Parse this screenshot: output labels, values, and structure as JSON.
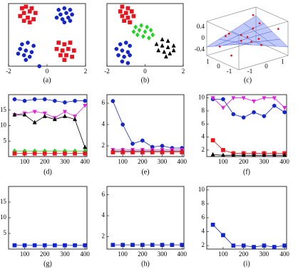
{
  "chart_data": [
    {
      "type": "scatter",
      "caption": "(a)",
      "xlim": [
        -2,
        2
      ],
      "ylim": [
        -2,
        2
      ],
      "xticks": [
        -2,
        0,
        2
      ],
      "series": [
        {
          "color": "#e8141e",
          "marker": "s",
          "x": [
            -1.3,
            -1.1,
            -0.8,
            -1.2,
            -0.9,
            -0.6,
            -1.4,
            -1.0,
            -0.7,
            -1.2,
            -0.9,
            0.6,
            0.9,
            1.2,
            0.5,
            0.8,
            1.1,
            1.4,
            0.7,
            1.0,
            1.3,
            0.9
          ],
          "y": [
            1.7,
            1.8,
            1.7,
            1.4,
            1.5,
            1.4,
            1.2,
            1.1,
            1.0,
            0.9,
            0.8,
            -0.5,
            -0.6,
            -0.5,
            -0.9,
            -1.0,
            -0.9,
            -1.0,
            -1.3,
            -1.3,
            -1.4,
            -1.6
          ]
        },
        {
          "color": "#1426c8",
          "marker": "o",
          "x": [
            0.6,
            0.9,
            1.2,
            0.7,
            1.0,
            1.3,
            0.5,
            0.8,
            1.1,
            0.9,
            1.2,
            -1.3,
            -1.0,
            -0.7,
            -1.4,
            -1.1,
            -0.8,
            -1.5,
            -1.2,
            -0.9,
            -1.1,
            -0.4
          ],
          "y": [
            1.6,
            1.7,
            1.6,
            1.3,
            1.4,
            1.3,
            1.1,
            1.0,
            1.1,
            0.8,
            0.9,
            -0.6,
            -0.5,
            -0.7,
            -0.9,
            -1.0,
            -1.1,
            -1.2,
            -1.3,
            -1.4,
            -1.6,
            -2.0
          ]
        }
      ]
    },
    {
      "type": "scatter",
      "caption": "(b)",
      "xlim": [
        -2,
        2
      ],
      "ylim": [
        -2,
        2
      ],
      "xticks": [
        -2,
        0,
        2
      ],
      "series": [
        {
          "color": "#e8141e",
          "marker": "s",
          "x": [
            -1.2,
            -0.9,
            -1.3,
            -1.0,
            -0.7,
            -1.2,
            -0.9,
            -0.6,
            -1.1,
            -0.8
          ],
          "y": [
            1.8,
            1.7,
            1.5,
            1.4,
            1.5,
            1.2,
            1.1,
            1.2,
            0.9,
            0.8
          ]
        },
        {
          "color": "#22d422",
          "marker": "d",
          "x": [
            -0.5,
            -0.2,
            0.1,
            -0.6,
            -0.3,
            0.0,
            0.3,
            -0.4,
            -0.1,
            0.2,
            0.4
          ],
          "y": [
            0.5,
            0.6,
            0.5,
            0.2,
            0.3,
            0.2,
            0.3,
            0.0,
            -0.1,
            -0.2,
            0.0
          ]
        },
        {
          "color": "#1426c8",
          "marker": "o",
          "x": [
            -1.3,
            -1.0,
            -0.8,
            -1.5,
            -1.2,
            -0.9,
            -1.4,
            -1.1,
            -0.8,
            -1.2,
            -0.9
          ],
          "y": [
            -0.6,
            -0.5,
            -0.7,
            -0.9,
            -1.0,
            -1.1,
            -1.3,
            -1.4,
            -1.3,
            -1.7,
            -1.8
          ]
        },
        {
          "color": "#000000",
          "marker": "^",
          "x": [
            0.9,
            1.2,
            0.6,
            0.9,
            1.2,
            1.5,
            0.7,
            1.0,
            1.3,
            1.5,
            1.1
          ],
          "y": [
            -0.3,
            -0.4,
            -0.6,
            -0.7,
            -0.8,
            -0.7,
            -1.0,
            -1.1,
            -1.2,
            -1.0,
            -1.4
          ]
        }
      ]
    },
    {
      "type": "scatter3d",
      "caption": "(c)",
      "xlim": [
        -1.5,
        1.5
      ],
      "ylim": [
        -1.5,
        1.5
      ],
      "zlim": [
        -0.6,
        0.6
      ],
      "xticks": [
        -1,
        0,
        1
      ],
      "yticks": [
        -1,
        0,
        1
      ],
      "zticks": [
        -0.4,
        0,
        0.4
      ],
      "surface": {
        "color": "#8c9cf0",
        "x": [
          -1.5,
          -0.75,
          0,
          0.75,
          1.5
        ],
        "y": [
          -1.5,
          -0.75,
          0,
          0.75,
          1.5
        ],
        "z": [
          [
            0.3,
            0.15,
            0,
            -0.15,
            -0.3
          ],
          [
            0.15,
            0.08,
            0,
            -0.08,
            -0.15
          ],
          [
            0,
            0,
            0,
            0,
            0
          ],
          [
            -0.15,
            -0.08,
            0,
            0.08,
            0.15
          ],
          [
            -0.3,
            -0.15,
            0,
            0.15,
            0.3
          ]
        ]
      },
      "points": {
        "color": "#e8141e",
        "x": [
          -1.2,
          -0.8,
          -0.3,
          0.2,
          0.7,
          1.1,
          1.3,
          -1.0,
          -0.5,
          0.4,
          0.9,
          -1.3,
          0.0,
          1.2
        ],
        "y": [
          1.1,
          -0.9,
          0.5,
          -1.2,
          0.8,
          -0.4,
          1.2,
          0.2,
          -1.3,
          1.0,
          -1.1,
          -0.6,
          0.0,
          0.4
        ],
        "z": [
          0.35,
          0.2,
          -0.05,
          0.25,
          0.1,
          0.05,
          0.4,
          -0.1,
          -0.3,
          0.3,
          -0.25,
          0.2,
          0.05,
          -0.15
        ]
      }
    },
    {
      "type": "line",
      "caption": "(d)",
      "x": [
        50,
        100,
        150,
        200,
        250,
        300,
        350,
        400
      ],
      "xlim": [
        20,
        410
      ],
      "ylim": [
        0,
        20
      ],
      "xticks": [
        100,
        200,
        300,
        400
      ],
      "yticks": [
        5,
        10,
        15
      ],
      "series": [
        {
          "color": "#1426c8",
          "marker": "o",
          "values": [
            18.5,
            18,
            18.5,
            18.5,
            18,
            17.5,
            18,
            18
          ]
        },
        {
          "color": "#e020e0",
          "marker": "v",
          "values": [
            13.5,
            14,
            14.5,
            14,
            12.5,
            14.5,
            13,
            16.5
          ]
        },
        {
          "color": "#000000",
          "marker": "^",
          "values": [
            13.5,
            13.5,
            11,
            13,
            12,
            13,
            12,
            3
          ]
        },
        {
          "color": "#22d422",
          "marker": "d",
          "values": [
            1.8,
            1.8,
            1.8,
            1.8,
            1.8,
            1.8,
            1.8,
            1.8
          ]
        },
        {
          "color": "#e8141e",
          "marker": "s",
          "values": [
            1,
            1,
            1,
            1,
            1,
            1,
            1,
            1
          ]
        }
      ]
    },
    {
      "type": "line",
      "caption": "(e)",
      "x": [
        50,
        100,
        150,
        200,
        250,
        300,
        350,
        400
      ],
      "xlim": [
        20,
        410
      ],
      "ylim": [
        1,
        6.8
      ],
      "xticks": [
        100,
        200,
        300,
        400
      ],
      "yticks": [
        2,
        4,
        6
      ],
      "series": [
        {
          "color": "#1426c8",
          "marker": "o",
          "values": [
            6.2,
            4,
            2.2,
            2.5,
            1.9,
            2,
            1.8,
            1.8
          ]
        },
        {
          "color": "#e020e0",
          "marker": "v",
          "values": [
            1.65,
            1.65,
            1.65,
            1.65,
            1.65,
            1.65,
            1.65,
            1.65
          ]
        },
        {
          "color": "#000000",
          "marker": "^",
          "values": [
            1.5,
            1.5,
            1.5,
            1.5,
            1.5,
            1.5,
            1.5,
            1.5
          ]
        },
        {
          "color": "#e8141e",
          "marker": "s",
          "values": [
            1.4,
            1.4,
            1.4,
            1.4,
            1.4,
            1.4,
            1.4,
            1.4
          ]
        }
      ]
    },
    {
      "type": "line",
      "caption": "(f)",
      "x": [
        50,
        100,
        150,
        200,
        250,
        300,
        350,
        400
      ],
      "xlim": [
        20,
        410
      ],
      "ylim": [
        1,
        10.5
      ],
      "xticks": [
        100,
        200,
        300,
        400
      ],
      "yticks": [
        2,
        4,
        6,
        8,
        10
      ],
      "series": [
        {
          "color": "#1426c8",
          "marker": "o",
          "values": [
            9.8,
            9.8,
            7.5,
            7,
            7.8,
            7.2,
            8.8,
            7.8
          ]
        },
        {
          "color": "#e020e0",
          "marker": "v",
          "values": [
            10,
            8.5,
            10,
            10,
            9.5,
            10,
            10,
            8.5
          ]
        },
        {
          "color": "#e8141e",
          "marker": "s",
          "values": [
            3.5,
            2,
            1.5,
            1.5,
            1.5,
            1.5,
            1.5,
            1.5
          ]
        },
        {
          "color": "#000000",
          "marker": "^",
          "values": [
            1.3,
            1.2,
            1.2,
            1.2,
            1.2,
            1.2,
            1.2,
            1.2
          ]
        }
      ]
    },
    {
      "type": "line",
      "caption": "(g)",
      "x": [
        50,
        100,
        150,
        200,
        250,
        300,
        350,
        400
      ],
      "xlim": [
        20,
        410
      ],
      "ylim": [
        0,
        20
      ],
      "xticks": [
        100,
        200,
        300,
        400
      ],
      "yticks": [
        5,
        10,
        15
      ],
      "series": [
        {
          "color": "#1426c8",
          "marker": "s",
          "values": [
            1.2,
            1.2,
            1.2,
            1.2,
            1.2,
            1.2,
            1.2,
            1.2
          ]
        }
      ]
    },
    {
      "type": "line",
      "caption": "(h)",
      "x": [
        50,
        100,
        150,
        200,
        250,
        300,
        350,
        400
      ],
      "xlim": [
        20,
        410
      ],
      "ylim": [
        0.8,
        6.8
      ],
      "xticks": [
        100,
        200,
        300,
        400
      ],
      "yticks": [
        2,
        4,
        6
      ],
      "series": [
        {
          "color": "#1426c8",
          "marker": "s",
          "values": [
            1.2,
            1.2,
            1.2,
            1.2,
            1.2,
            1.2,
            1.2,
            1.2
          ]
        }
      ]
    },
    {
      "type": "line",
      "caption": "(i)",
      "x": [
        50,
        100,
        150,
        200,
        250,
        300,
        350,
        400
      ],
      "xlim": [
        20,
        410
      ],
      "ylim": [
        1.5,
        10.5
      ],
      "xticks": [
        100,
        200,
        300,
        400
      ],
      "yticks": [
        2,
        4,
        6,
        8,
        10
      ],
      "series": [
        {
          "color": "#1426c8",
          "marker": "s",
          "values": [
            5,
            3.5,
            2,
            2,
            1.8,
            2,
            1.8,
            2
          ]
        }
      ]
    }
  ]
}
